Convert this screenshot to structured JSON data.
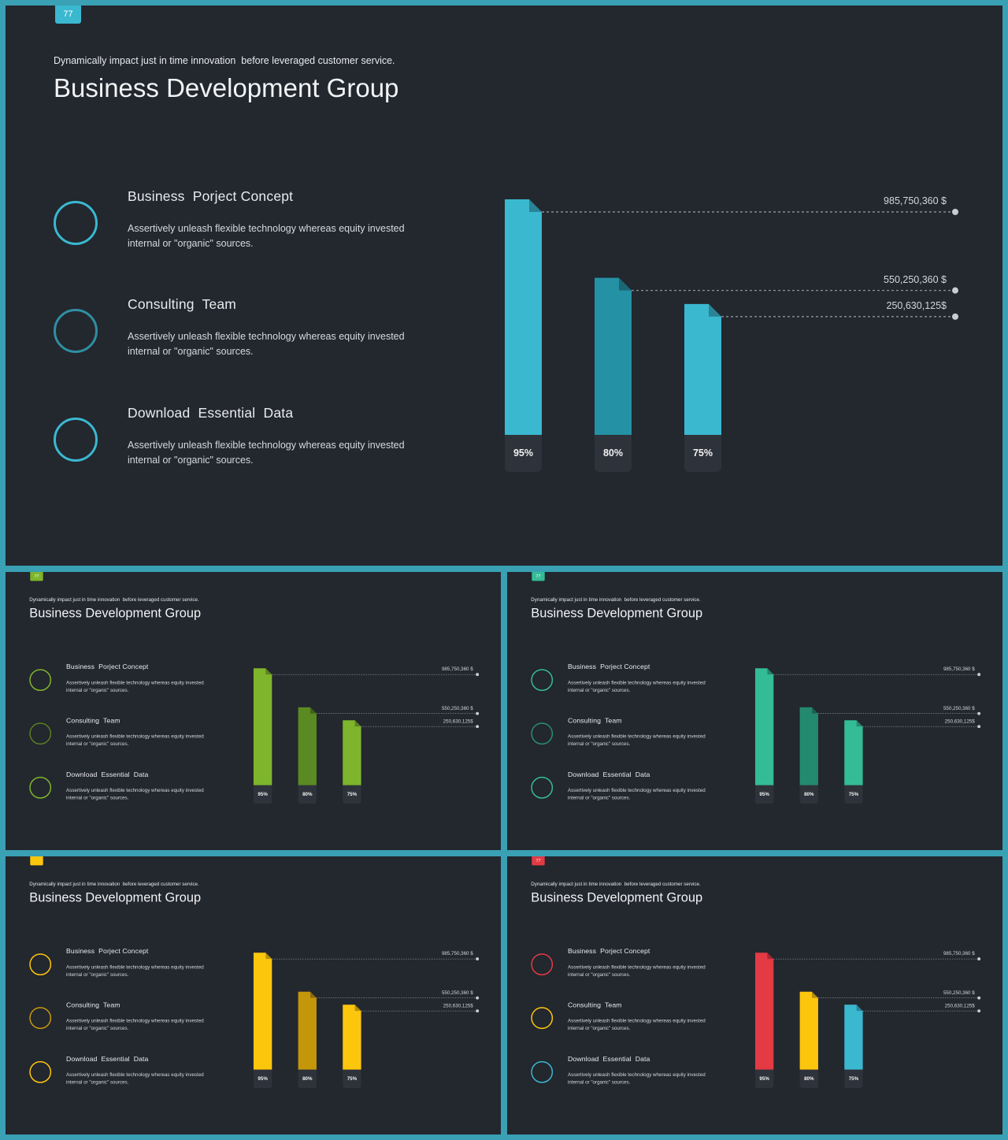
{
  "slides": [
    {
      "badge": "77",
      "badge_color": "#3ab8d0",
      "bars": [
        "#3ab8d0",
        "#2491a4",
        "#3ab8d0"
      ],
      "rings": [
        "#3ab8d0",
        "#2f8fa2",
        "#3ab8d0"
      ]
    },
    {
      "badge": "77",
      "badge_color": "#7eb52c",
      "bars": [
        "#7eb52c",
        "#5a8a22",
        "#7eb52c"
      ],
      "rings": [
        "#7eb52c",
        "#5a7f24",
        "#7eb52c"
      ]
    },
    {
      "badge": "77",
      "badge_color": "#34bc97",
      "bars": [
        "#34bc97",
        "#248a6f",
        "#34bc97"
      ],
      "rings": [
        "#34bc97",
        "#2a8f78",
        "#34bc97"
      ]
    },
    {
      "badge": "",
      "badge_color": "#fcc60d",
      "bars": [
        "#fcc60d",
        "#c4960a",
        "#fcc60d"
      ],
      "rings": [
        "#fcc60d",
        "#c89a10",
        "#fcc60d"
      ]
    },
    {
      "badge": "77",
      "badge_color": "#e33a44",
      "bars": [
        "#e33a44",
        "#fcc60d",
        "#3ab8d0"
      ],
      "rings": [
        "#e33a44",
        "#fcc60d",
        "#3ab8d0"
      ]
    }
  ],
  "content": {
    "subtitle": "Dynamically impact just in time innovation  before leveraged customer service.",
    "title": "Business Development Group",
    "items": [
      {
        "title": "Business  Porject Concept",
        "desc": "Assertively unleash flexible technology whereas equity invested\ninternal or \"organic\" sources."
      },
      {
        "title": "Consulting  Team",
        "desc": "Assertively unleash flexible technology whereas equity invested\ninternal or \"organic\" sources."
      },
      {
        "title": "Download  Essential  Data",
        "desc": "Assertively unleash flexible technology whereas equity invested\ninternal or \"organic\" sources."
      }
    ]
  },
  "chart_data": {
    "type": "bar",
    "categories": [
      "95%",
      "80%",
      "75%"
    ],
    "values": [
      95,
      80,
      75
    ],
    "value_labels": [
      "985,750,360 $",
      "550,250,360 $",
      "250,630,125$"
    ],
    "ylim": [
      0,
      100
    ]
  }
}
